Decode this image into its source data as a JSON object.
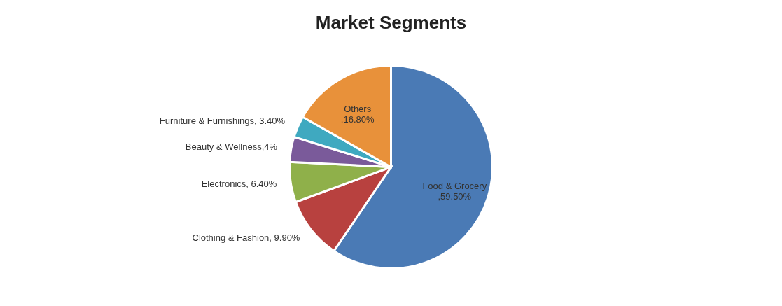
{
  "chart_data": {
    "type": "pie",
    "title": "Market Segments",
    "categories": [
      "Food & Grocery",
      "Clothing & Fashion",
      "Electronics",
      "Beauty & Wellness",
      "Furniture & Furnishings",
      "Others"
    ],
    "values": [
      59.5,
      9.9,
      6.4,
      4,
      3.4,
      16.8
    ],
    "value_labels": [
      ",59.50%",
      ", 9.90%",
      ", 6.40%",
      ",4%",
      ", 3.40%",
      ",16.80%"
    ],
    "colors": [
      "#4a7ab5",
      "#b8413f",
      "#8fb04a",
      "#7a5a9a",
      "#3fa9c0",
      "#e8913a"
    ],
    "legend": false
  }
}
